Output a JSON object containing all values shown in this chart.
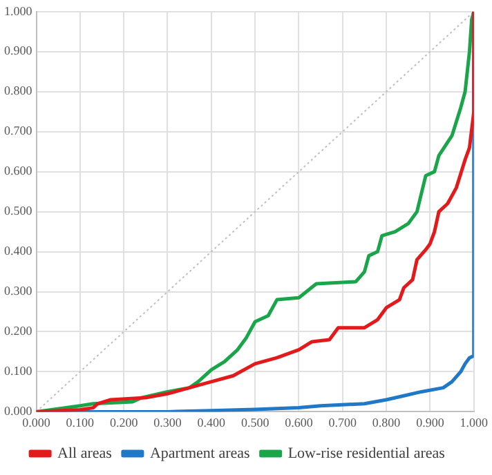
{
  "chart_data": {
    "type": "line",
    "xlim": [
      0,
      1
    ],
    "ylim": [
      0,
      1
    ],
    "xticks": [
      {
        "value": 0,
        "label": "0.000"
      },
      {
        "value": 0.1,
        "label": "0.100"
      },
      {
        "value": 0.2,
        "label": "0.200"
      },
      {
        "value": 0.3,
        "label": "0.300"
      },
      {
        "value": 0.4,
        "label": "0.400"
      },
      {
        "value": 0.5,
        "label": "0.500"
      },
      {
        "value": 0.6,
        "label": "0.600"
      },
      {
        "value": 0.7,
        "label": "0.700"
      },
      {
        "value": 0.8,
        "label": "0.800"
      },
      {
        "value": 0.9,
        "label": "0.900"
      },
      {
        "value": 1,
        "label": "1.000"
      }
    ],
    "yticks": [
      {
        "value": 0,
        "label": "0.000"
      },
      {
        "value": 0.1,
        "label": "0.100"
      },
      {
        "value": 0.2,
        "label": "0.200"
      },
      {
        "value": 0.3,
        "label": "0.300"
      },
      {
        "value": 0.4,
        "label": "0.400"
      },
      {
        "value": 0.5,
        "label": "0.500"
      },
      {
        "value": 0.6,
        "label": "0.600"
      },
      {
        "value": 0.7,
        "label": "0.700"
      },
      {
        "value": 0.8,
        "label": "0.800"
      },
      {
        "value": 0.9,
        "label": "0.900"
      },
      {
        "value": 1,
        "label": "1.000"
      }
    ],
    "grid": true,
    "legend": "bottom",
    "marker": "none",
    "series": [
      {
        "name": "All areas",
        "color": "#e31a1c",
        "x": [
          0,
          0.1,
          0.13,
          0.14,
          0.17,
          0.25,
          0.3,
          0.35,
          0.4,
          0.45,
          0.5,
          0.55,
          0.6,
          0.63,
          0.67,
          0.69,
          0.75,
          0.78,
          0.8,
          0.83,
          0.84,
          0.86,
          0.87,
          0.89,
          0.9,
          0.91,
          0.92,
          0.94,
          0.96,
          0.98,
          0.99,
          1,
          1
        ],
        "values": [
          0,
          0.005,
          0.01,
          0.02,
          0.03,
          0.035,
          0.045,
          0.06,
          0.075,
          0.09,
          0.12,
          0.135,
          0.155,
          0.175,
          0.18,
          0.21,
          0.21,
          0.23,
          0.26,
          0.28,
          0.31,
          0.33,
          0.38,
          0.405,
          0.42,
          0.45,
          0.5,
          0.52,
          0.56,
          0.63,
          0.66,
          0.75,
          1
        ]
      },
      {
        "name": "Apartment areas",
        "color": "#1f78c8",
        "x": [
          0,
          0.3,
          0.4,
          0.5,
          0.6,
          0.65,
          0.75,
          0.8,
          0.84,
          0.88,
          0.93,
          0.95,
          0.97,
          0.98,
          0.99,
          1,
          1
        ],
        "values": [
          0,
          0,
          0.003,
          0.006,
          0.01,
          0.015,
          0.02,
          0.03,
          0.04,
          0.05,
          0.06,
          0.075,
          0.1,
          0.12,
          0.135,
          0.14,
          1
        ]
      },
      {
        "name": "Low-rise residential areas",
        "color": "#1aa54a",
        "x": [
          0,
          0.1,
          0.13,
          0.22,
          0.24,
          0.3,
          0.35,
          0.37,
          0.4,
          0.43,
          0.46,
          0.48,
          0.5,
          0.53,
          0.55,
          0.6,
          0.64,
          0.73,
          0.75,
          0.76,
          0.78,
          0.79,
          0.82,
          0.85,
          0.87,
          0.88,
          0.89,
          0.91,
          0.92,
          0.95,
          0.97,
          0.98,
          0.99,
          0.995,
          1
        ],
        "values": [
          0,
          0.015,
          0.02,
          0.025,
          0.035,
          0.05,
          0.06,
          0.075,
          0.105,
          0.125,
          0.155,
          0.185,
          0.225,
          0.24,
          0.28,
          0.285,
          0.32,
          0.325,
          0.35,
          0.39,
          0.4,
          0.44,
          0.45,
          0.47,
          0.5,
          0.545,
          0.59,
          0.6,
          0.64,
          0.69,
          0.76,
          0.8,
          0.9,
          0.98,
          1
        ]
      },
      {
        "color": "#bfbfbf",
        "line_style": "dotted",
        "x": [
          0,
          1
        ],
        "values": [
          0,
          1
        ]
      }
    ]
  }
}
